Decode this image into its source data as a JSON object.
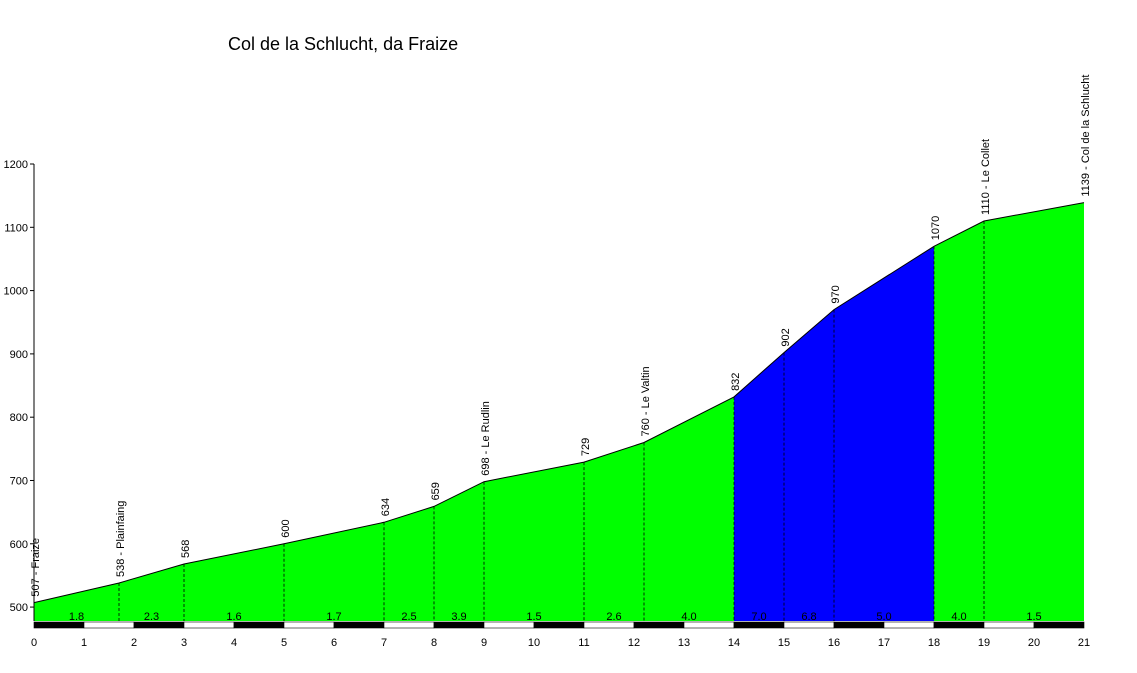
{
  "chart_data": {
    "type": "area",
    "title": "Col de la Schlucht, da Fraize",
    "xlabel": "",
    "ylabel": "",
    "xlim": [
      0,
      21
    ],
    "ylim": [
      478,
      1200
    ],
    "y_ticks": [
      500,
      600,
      700,
      800,
      900,
      1000,
      1100,
      1200
    ],
    "x_ticks": [
      0,
      1,
      2,
      3,
      4,
      5,
      6,
      7,
      8,
      9,
      10,
      11,
      12,
      13,
      14,
      15,
      16,
      17,
      18,
      19,
      20,
      21
    ],
    "points": [
      {
        "x": 0,
        "y": 507,
        "label": "507 - Fraize"
      },
      {
        "x": 1.7,
        "y": 538,
        "label": "538 - Plainfaing"
      },
      {
        "x": 3,
        "y": 568,
        "label": "568"
      },
      {
        "x": 5,
        "y": 600,
        "label": "600"
      },
      {
        "x": 7,
        "y": 634,
        "label": "634"
      },
      {
        "x": 8,
        "y": 659,
        "label": "659"
      },
      {
        "x": 9,
        "y": 698,
        "label": "698 - Le Rudlin"
      },
      {
        "x": 11,
        "y": 729,
        "label": "729"
      },
      {
        "x": 12.2,
        "y": 760,
        "label": "760 - Le Valtin"
      },
      {
        "x": 14,
        "y": 832,
        "label": "832"
      },
      {
        "x": 15,
        "y": 902,
        "label": "902"
      },
      {
        "x": 16,
        "y": 970,
        "label": "970"
      },
      {
        "x": 18,
        "y": 1070,
        "label": "1070"
      },
      {
        "x": 19,
        "y": 1110,
        "label": "1110 - Le Collet"
      },
      {
        "x": 21,
        "y": 1139,
        "label": "1139 - Col de la Schlucht"
      }
    ],
    "segments": [
      {
        "from": 0,
        "to": 1.7,
        "gradient": "1.8",
        "color": "#00ff00"
      },
      {
        "from": 1.7,
        "to": 3,
        "gradient": "2.3",
        "color": "#00ff00"
      },
      {
        "from": 3,
        "to": 5,
        "gradient": "1.6",
        "color": "#00ff00"
      },
      {
        "from": 5,
        "to": 7,
        "gradient": "1.7",
        "color": "#00ff00"
      },
      {
        "from": 7,
        "to": 8,
        "gradient": "2.5",
        "color": "#00ff00"
      },
      {
        "from": 8,
        "to": 9,
        "gradient": "3.9",
        "color": "#00ff00"
      },
      {
        "from": 9,
        "to": 11,
        "gradient": "1.5",
        "color": "#00ff00"
      },
      {
        "from": 11,
        "to": 12.2,
        "gradient": "2.6",
        "color": "#00ff00"
      },
      {
        "from": 12.2,
        "to": 14,
        "gradient": "4.0",
        "color": "#00ff00"
      },
      {
        "from": 14,
        "to": 15,
        "gradient": "7.0",
        "color": "#0000ff"
      },
      {
        "from": 15,
        "to": 16,
        "gradient": "6.8",
        "color": "#0000ff"
      },
      {
        "from": 16,
        "to": 18,
        "gradient": "5.0",
        "color": "#0000ff"
      },
      {
        "from": 18,
        "to": 19,
        "gradient": "4.0",
        "color": "#00ff00"
      },
      {
        "from": 19,
        "to": 21,
        "gradient": "1.5",
        "color": "#00ff00"
      }
    ],
    "grid": false,
    "legend": "none"
  }
}
